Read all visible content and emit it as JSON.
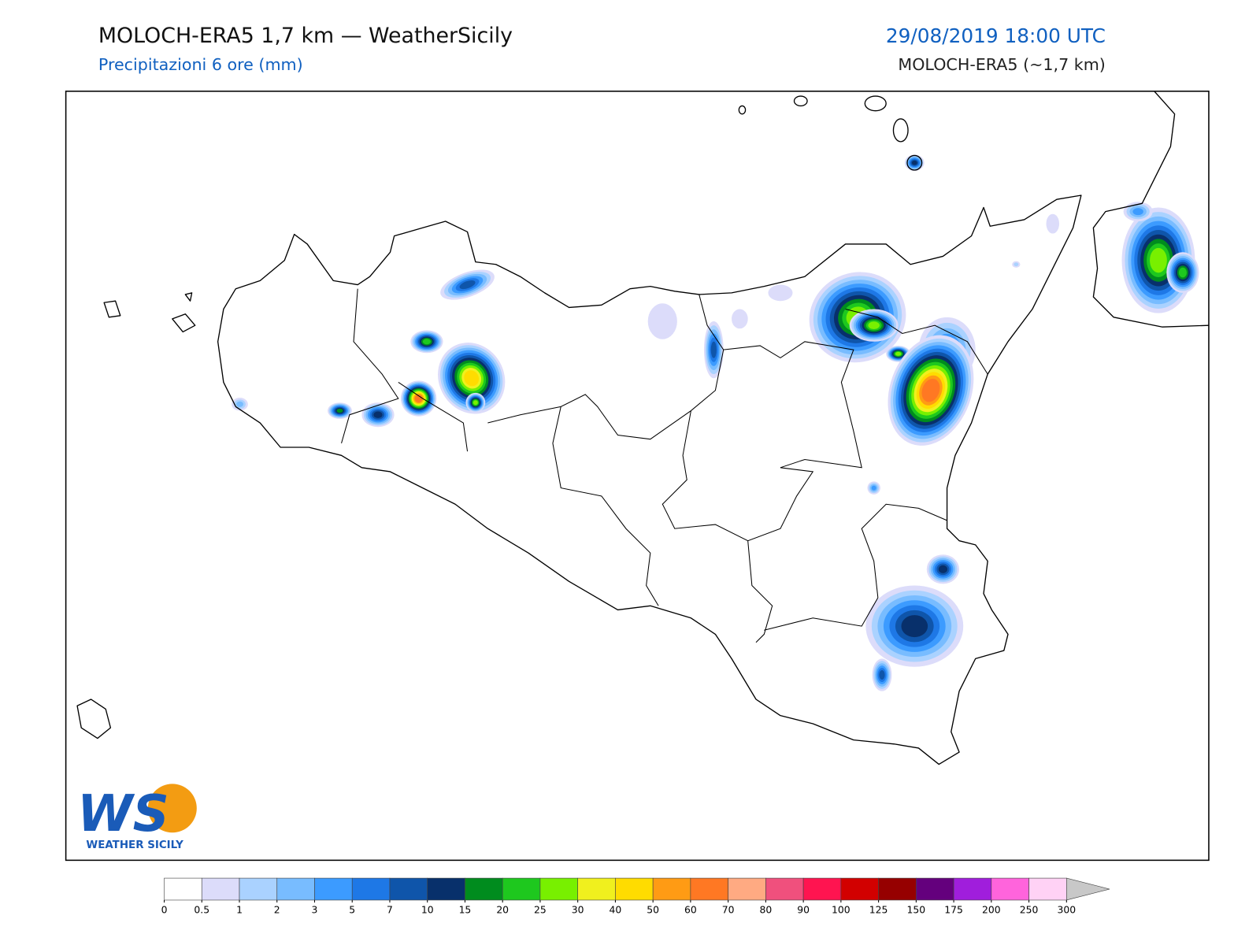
{
  "header": {
    "title": "MOLOCH-ERA5 1,7 km — WeatherSicily",
    "subtitle": "Precipitazioni 6 ore (mm)",
    "datetime": "29/08/2019 18:00 UTC",
    "model": "MOLOCH-ERA5 (~1,7 km)"
  },
  "colorbar": {
    "levels": [
      0,
      0.5,
      1,
      2,
      3,
      5,
      7,
      10,
      15,
      20,
      25,
      30,
      40,
      50,
      60,
      70,
      80,
      90,
      100,
      125,
      150,
      175,
      200,
      250,
      300
    ],
    "colors": [
      "#ffffff",
      "#dcdcfa",
      "#aad2ff",
      "#78bcff",
      "#3c9bff",
      "#1e78e6",
      "#0f55aa",
      "#08306b",
      "#008c1e",
      "#1ec81e",
      "#78f000",
      "#f0f01e",
      "#ffdc00",
      "#ff9b14",
      "#ff7823",
      "#ffaa82",
      "#f0507d",
      "#ff1450",
      "#d20000",
      "#960000",
      "#64007d",
      "#a01edc",
      "#ff64dc",
      "#ffd2f5"
    ],
    "extend_color": "#c8c8c8"
  },
  "logo": {
    "mark": "WS",
    "text": "WEATHER SICILY"
  }
}
